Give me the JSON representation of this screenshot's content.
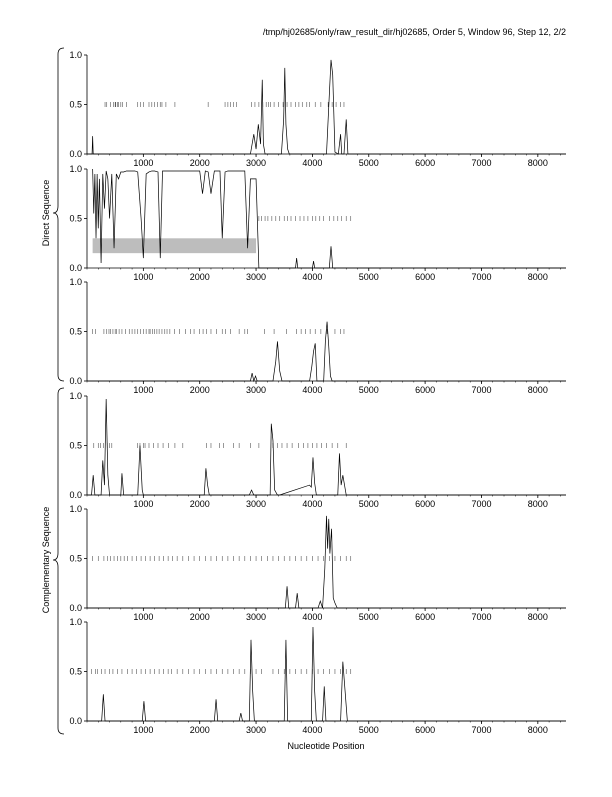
{
  "header": {
    "title": "/tmp/hj02685/only/raw_result_dir/hj02685, Order 5, Window 96, Step 12, 2/2"
  },
  "group_labels": {
    "direct": "Direct Sequence",
    "complementary": "Complementary Sequence"
  },
  "xlabel": "Nucleotide Position",
  "chart_data": [
    {
      "type": "line",
      "panel": "direct-1",
      "xlim": [
        0,
        8500
      ],
      "ylim": [
        0,
        1.0
      ],
      "xticks": [
        1000,
        2000,
        3000,
        4000,
        5000,
        6000,
        7000,
        8000
      ],
      "yticks": [
        0.0,
        0.5,
        1.0
      ],
      "series": [
        {
          "x": [
            0,
            90,
            100,
            110,
            150,
            2900,
            2960,
            3000,
            3040,
            3080,
            3110,
            3130,
            3160,
            3200,
            3450,
            3490,
            3510,
            3530,
            3560,
            3590,
            3620,
            4250,
            4300,
            4330,
            4360,
            4400,
            4460,
            4500,
            4520,
            4560,
            4600,
            4630,
            4660,
            4700,
            8500
          ],
          "y": [
            0,
            0,
            0.18,
            0,
            0,
            0,
            0.2,
            0.05,
            0.3,
            0.1,
            0.75,
            0.1,
            0,
            0,
            0,
            0.35,
            0.87,
            0.3,
            0.05,
            0,
            0,
            0,
            0.6,
            0.95,
            0.8,
            0.02,
            0,
            0.2,
            0,
            0,
            0.35,
            0,
            0,
            0,
            0
          ]
        }
      ],
      "marks": [
        320,
        350,
        420,
        470,
        500,
        510,
        540,
        560,
        600,
        630,
        700,
        900,
        950,
        1000,
        1100,
        1150,
        1200,
        1250,
        1300,
        1330,
        1400,
        1560,
        2150,
        2450,
        2500,
        2550,
        2600,
        2650,
        2920,
        2980,
        3050,
        3120,
        3180,
        3220,
        3260,
        3320,
        3400,
        3480,
        3550,
        3620,
        3700,
        3760,
        3820,
        3900,
        3950,
        4050,
        4150,
        4280,
        4350,
        4420,
        4500,
        4560
      ]
    },
    {
      "type": "line",
      "panel": "direct-2",
      "xlim": [
        0,
        8500
      ],
      "ylim": [
        0,
        1.0
      ],
      "xticks": [
        1000,
        2000,
        3000,
        4000,
        5000,
        6000,
        7000,
        8000
      ],
      "yticks": [
        0.0,
        0.5,
        1.0
      ],
      "highlight": [
        100,
        3000
      ],
      "series": [
        {
          "x": [
            100,
            120,
            140,
            160,
            180,
            200,
            220,
            250,
            280,
            310,
            340,
            370,
            400,
            440,
            480,
            520,
            560,
            600,
            650,
            700,
            760,
            800,
            850,
            900,
            960,
            1000,
            1050,
            1100,
            1150,
            1200,
            1260,
            1300,
            1340,
            1380,
            1420,
            1500,
            1600,
            1700,
            1800,
            1900,
            2000,
            2050,
            2100,
            2150,
            2200,
            2260,
            2300,
            2360,
            2400,
            2450,
            2500,
            2560,
            2620,
            2680,
            2740,
            2800,
            2850,
            2900,
            2950,
            3000,
            3050,
            3600,
            3700,
            3720,
            3740,
            3800,
            4000,
            4020,
            4040,
            4300,
            4330,
            4360,
            4400,
            8500
          ],
          "y": [
            1.0,
            0.55,
            0.95,
            0.3,
            0.95,
            0.4,
            0.9,
            0.05,
            0.95,
            0.6,
            0.98,
            0.9,
            0.5,
            0.95,
            0.2,
            0.95,
            0.9,
            0.97,
            0.97,
            0.98,
            0.98,
            0.98,
            0.98,
            0.97,
            0.5,
            0.1,
            0.95,
            0.97,
            0.98,
            0.98,
            0.97,
            0.1,
            0.98,
            0.98,
            0.98,
            0.98,
            0.98,
            0.98,
            0.98,
            0.98,
            0.98,
            0.75,
            0.98,
            0.97,
            0.75,
            0.98,
            0.98,
            0.98,
            0.3,
            0.97,
            0.98,
            0.98,
            0.98,
            0.98,
            0.98,
            0.98,
            0.2,
            0.9,
            0.9,
            0.9,
            0,
            0,
            0,
            0.1,
            0,
            0,
            0,
            0.07,
            0,
            0,
            0.22,
            0,
            0,
            0
          ]
        }
      ],
      "marks": [
        3050,
        3100,
        3160,
        3210,
        3280,
        3350,
        3420,
        3500,
        3560,
        3620,
        3700,
        3780,
        3850,
        3920,
        4000,
        4060,
        4130,
        4200,
        4300,
        4380,
        4450,
        4520,
        4600,
        4680
      ]
    },
    {
      "type": "line",
      "panel": "direct-3",
      "xlim": [
        0,
        8500
      ],
      "ylim": [
        0,
        1.0
      ],
      "xticks": [
        1000,
        2000,
        3000,
        4000,
        5000,
        6000,
        7000,
        8000
      ],
      "yticks": [
        0.0,
        0.5,
        1.0
      ],
      "series": [
        {
          "x": [
            0,
            2900,
            2930,
            2960,
            2990,
            3020,
            3050,
            3300,
            3350,
            3380,
            3420,
            3460,
            3950,
            3990,
            4020,
            4050,
            4080,
            4200,
            4230,
            4260,
            4290,
            4320,
            4350,
            8500
          ],
          "y": [
            0,
            0,
            0.08,
            0,
            0.05,
            0,
            0,
            0,
            0.2,
            0.4,
            0.1,
            0,
            0,
            0.15,
            0.3,
            0.38,
            0,
            0,
            0.4,
            0.6,
            0.35,
            0.05,
            0,
            0
          ]
        }
      ],
      "marks": [
        100,
        150,
        300,
        350,
        390,
        420,
        460,
        500,
        520,
        570,
        620,
        680,
        750,
        800,
        850,
        900,
        950,
        1000,
        1050,
        1100,
        1120,
        1160,
        1200,
        1240,
        1280,
        1330,
        1380,
        1420,
        1470,
        1550,
        1640,
        1750,
        1840,
        1900,
        2000,
        2060,
        2120,
        2200,
        2300,
        2400,
        2460,
        2550,
        2700,
        2800,
        2850,
        3150,
        3320,
        3540,
        3720,
        3800,
        3880,
        3960,
        4050,
        4150,
        4260,
        4400,
        4500,
        4560
      ]
    },
    {
      "type": "line",
      "panel": "complementary-1",
      "xlim": [
        0,
        8500
      ],
      "ylim": [
        0,
        1.0
      ],
      "xticks": [
        1000,
        2000,
        3000,
        4000,
        5000,
        6000,
        7000,
        8000
      ],
      "yticks": [
        0.0,
        0.5,
        1.0
      ],
      "series": [
        {
          "x": [
            0,
            80,
            110,
            140,
            250,
            280,
            310,
            340,
            370,
            400,
            600,
            620,
            650,
            900,
            940,
            980,
            1000,
            2080,
            2110,
            2140,
            2170,
            2880,
            2920,
            2960,
            3000,
            3250,
            3270,
            3300,
            3330,
            3380,
            3420,
            3950,
            3980,
            4010,
            4040,
            4070,
            4100,
            4450,
            4480,
            4510,
            4540,
            4600,
            8500
          ],
          "y": [
            0,
            0,
            0.2,
            0,
            0,
            0.35,
            0.1,
            0.97,
            0.2,
            0,
            0,
            0.22,
            0,
            0,
            0.5,
            0.05,
            0,
            0,
            0.27,
            0.1,
            0,
            0,
            0.05,
            0,
            0,
            0,
            0.72,
            0.55,
            0.05,
            0,
            0,
            0.1,
            0.08,
            0.38,
            0.12,
            0,
            0,
            0,
            0.42,
            0.1,
            0.2,
            0,
            0
          ]
        }
      ],
      "marks": [
        120,
        200,
        240,
        290,
        360,
        400,
        440,
        900,
        940,
        1000,
        1030,
        1100,
        1180,
        1260,
        1350,
        1450,
        1560,
        1700,
        2120,
        2200,
        2350,
        2420,
        2600,
        2700,
        2900,
        3050,
        3300,
        3380,
        3460,
        3550,
        3640,
        3750,
        3840,
        3920,
        4000,
        4080,
        4160,
        4250,
        4350,
        4450,
        4600
      ]
    },
    {
      "type": "line",
      "panel": "complementary-2",
      "xlim": [
        0,
        8500
      ],
      "ylim": [
        0,
        1.0
      ],
      "xticks": [
        1000,
        2000,
        3000,
        4000,
        5000,
        6000,
        7000,
        8000
      ],
      "yticks": [
        0.0,
        0.5,
        1.0
      ],
      "series": [
        {
          "x": [
            0,
            3520,
            3550,
            3580,
            3700,
            3730,
            3760,
            4100,
            4140,
            4180,
            4220,
            4250,
            4270,
            4290,
            4310,
            4340,
            4370,
            4400,
            4440,
            8500
          ],
          "y": [
            0,
            0,
            0.22,
            0,
            0,
            0.15,
            0,
            0,
            0.07,
            0,
            0.4,
            0.93,
            0.6,
            0.9,
            0.55,
            0.8,
            0.1,
            0.05,
            0,
            0
          ]
        }
      ],
      "marks": [
        100,
        200,
        300,
        360,
        420,
        480,
        540,
        600,
        660,
        720,
        800,
        880,
        960,
        1040,
        1120,
        1200,
        1280,
        1360,
        1440,
        1520,
        1600,
        1700,
        1800,
        1900,
        2000,
        2100,
        2200,
        2300,
        2400,
        2500,
        2600,
        2700,
        2800,
        2900,
        3000,
        3100,
        3200,
        3300,
        3400,
        3500,
        3600,
        3700,
        3800,
        3900,
        4000,
        4100,
        4200,
        4300,
        4400,
        4500,
        4600,
        4680
      ]
    },
    {
      "type": "line",
      "panel": "complementary-3",
      "xlim": [
        0,
        8500
      ],
      "ylim": [
        0,
        1.0
      ],
      "xticks": [
        1000,
        2000,
        3000,
        4000,
        5000,
        6000,
        7000,
        8000
      ],
      "yticks": [
        0.0,
        0.5,
        1.0
      ],
      "series": [
        {
          "x": [
            0,
            260,
            290,
            320,
            980,
            1010,
            1040,
            2260,
            2290,
            2320,
            2700,
            2730,
            2760,
            2880,
            2910,
            2940,
            2970,
            3500,
            3530,
            3560,
            3980,
            4010,
            4040,
            4070,
            4180,
            4210,
            4240,
            4500,
            4540,
            4580,
            4620,
            8500
          ],
          "y": [
            0,
            0,
            0.27,
            0,
            0,
            0.2,
            0,
            0,
            0.22,
            0,
            0,
            0.08,
            0,
            0,
            0.82,
            0.3,
            0,
            0,
            0.82,
            0,
            0,
            0.95,
            0.3,
            0,
            0,
            0.35,
            0,
            0,
            0.6,
            0.3,
            0,
            0
          ]
        }
      ],
      "marks": [
        80,
        150,
        190,
        260,
        320,
        400,
        460,
        540,
        620,
        720,
        800,
        880,
        960,
        1040,
        1120,
        1200,
        1280,
        1360,
        1440,
        1500,
        1600,
        1700,
        1800,
        1900,
        2000,
        2100,
        2200,
        2300,
        2400,
        2500,
        2600,
        2700,
        2800,
        2900,
        3000,
        3100,
        3300,
        3400,
        3500,
        3600,
        3700,
        3800,
        3900,
        4000,
        4100,
        4200,
        4300,
        4400,
        4500,
        4600,
        4680
      ]
    }
  ]
}
